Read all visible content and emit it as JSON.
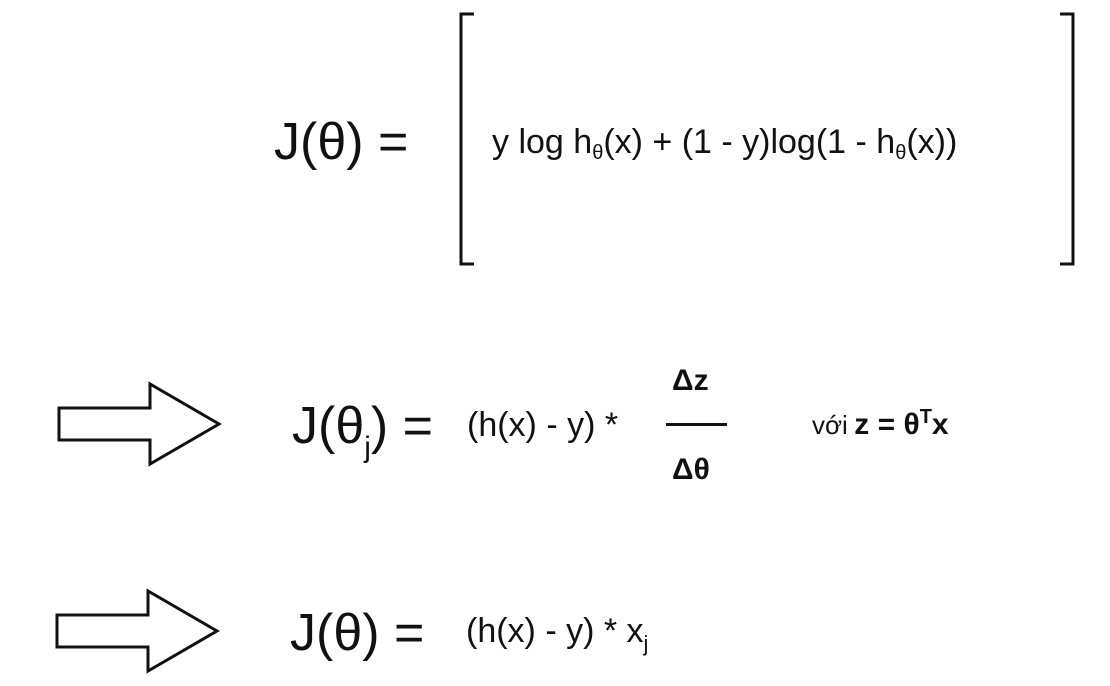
{
  "eq1": {
    "lhs": "J(θ) =",
    "rhs_part1": "y log h",
    "sub1": "θ",
    "rhs_part2": "(x) + (1 - y)log(1 - h",
    "sub2": "θ",
    "rhs_part3": "(x))"
  },
  "eq2": {
    "lhs_prefix": "J(θ",
    "lhs_sub": "j",
    "lhs_suffix": ") =",
    "rhs": "(h(x) - y) *",
    "numerator": "Δz",
    "denominator": "Δθ",
    "with_word": "với",
    "with_expr": "z = θ",
    "with_sup": "T",
    "with_tail": "x"
  },
  "eq3": {
    "lhs": "J(θ) =",
    "rhs": "(h(x) - y) * x",
    "rhs_sub": "j"
  },
  "colors": {
    "ink": "#111111",
    "background": "#ffffff"
  }
}
